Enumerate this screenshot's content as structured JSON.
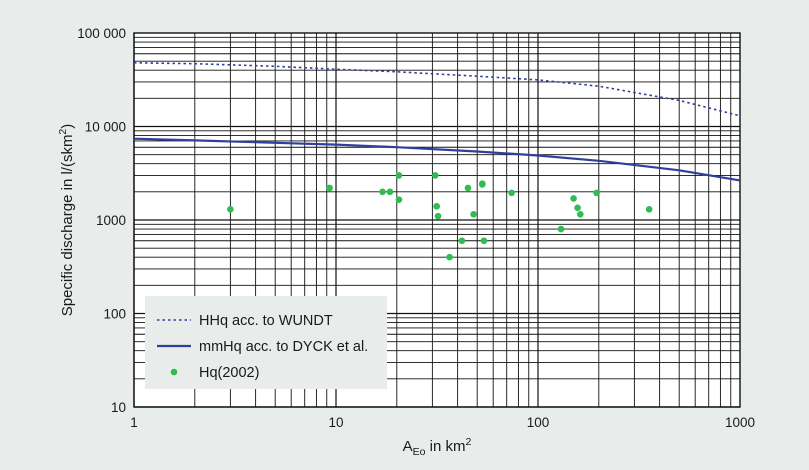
{
  "chart_data": {
    "type": "scatter",
    "title": "",
    "x_scale": "log",
    "y_scale": "log",
    "xlim": [
      1,
      1000
    ],
    "ylim": [
      10,
      100000
    ],
    "grid": true,
    "legend_position": "bottom-left",
    "xlabel": {
      "main": "A",
      "sub": "Eo",
      "rest": " in km",
      "sup": "2"
    },
    "ylabel": {
      "main": "Specific discharge in l/(skm",
      "sup": "2",
      "rest": ")"
    },
    "x_ticks": [
      {
        "value": 1,
        "label": "1"
      },
      {
        "value": 10,
        "label": "10"
      },
      {
        "value": 100,
        "label": "100"
      },
      {
        "value": 1000,
        "label": "1000"
      }
    ],
    "y_ticks": [
      {
        "value": 10,
        "label": "10"
      },
      {
        "value": 100,
        "label": "100"
      },
      {
        "value": 1000,
        "label": "1000"
      },
      {
        "value": 10000,
        "label": "10 000"
      },
      {
        "value": 100000,
        "label": "100 000"
      }
    ],
    "series": [
      {
        "name": "HHq acc. to WUNDT",
        "kind": "line",
        "style": "dotted",
        "color": "#2f3f9c",
        "x": [
          1,
          2,
          5,
          10,
          20,
          50,
          100,
          200,
          500,
          1000
        ],
        "y": [
          48000,
          47000,
          44000,
          41000,
          38500,
          34500,
          31500,
          27000,
          19000,
          13000
        ]
      },
      {
        "name": "mmHq acc. to DYCK et al.",
        "kind": "line",
        "style": "solid",
        "color": "#2f3f9c",
        "x": [
          1,
          2,
          5,
          10,
          20,
          50,
          100,
          200,
          500,
          1000
        ],
        "y": [
          7400,
          7100,
          6700,
          6400,
          6000,
          5400,
          4900,
          4300,
          3400,
          2650
        ]
      },
      {
        "name": "Hq(2002)",
        "kind": "scatter",
        "color": "#2fbd4f",
        "x": [
          3,
          9.3,
          17,
          18.5,
          20.5,
          20.5,
          31,
          31.5,
          31.5,
          32,
          36.5,
          42,
          45,
          48,
          53,
          53,
          54,
          74,
          130,
          150,
          157,
          162,
          195,
          355
        ],
        "y": [
          1300,
          2200,
          2000,
          2000,
          3000,
          1650,
          3000,
          1400,
          1400,
          1100,
          400,
          600,
          2200,
          1150,
          2450,
          2400,
          600,
          1950,
          800,
          1700,
          1350,
          1150,
          1950,
          1300
        ]
      }
    ]
  }
}
